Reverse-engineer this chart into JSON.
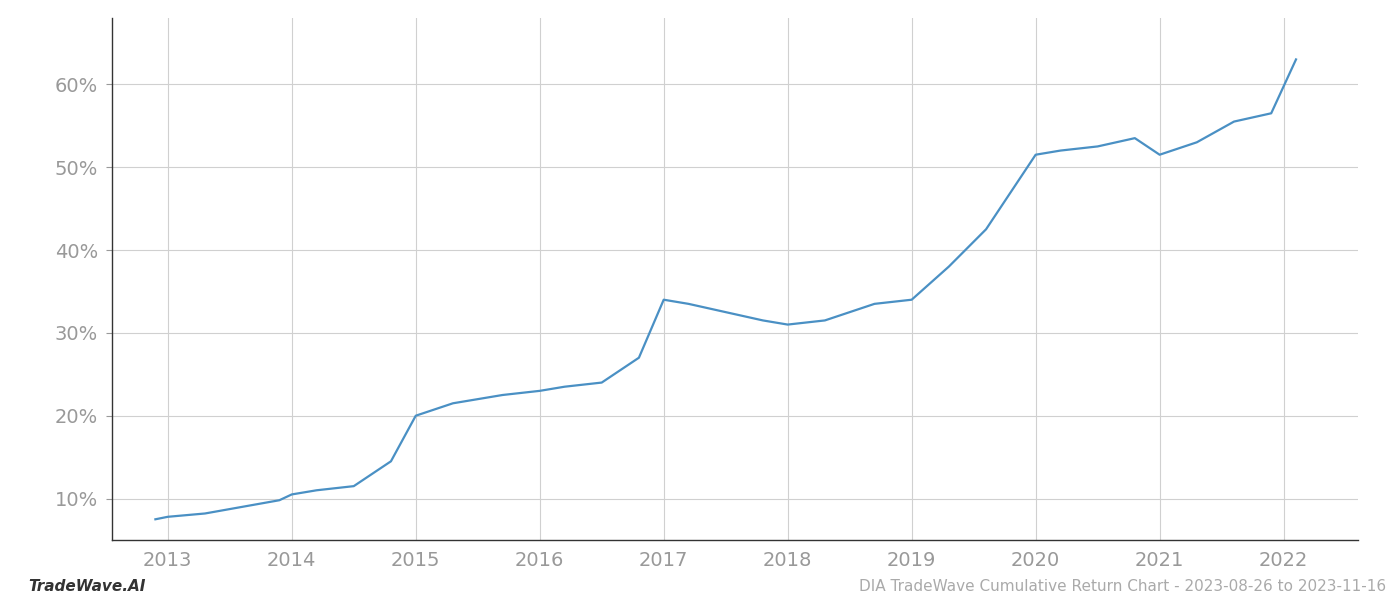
{
  "x_years": [
    2012.9,
    2013.0,
    2013.3,
    2013.6,
    2013.9,
    2014.0,
    2014.2,
    2014.5,
    2014.8,
    2015.0,
    2015.3,
    2015.7,
    2016.0,
    2016.2,
    2016.5,
    2016.8,
    2017.0,
    2017.2,
    2017.5,
    2017.8,
    2018.0,
    2018.3,
    2018.7,
    2019.0,
    2019.3,
    2019.6,
    2020.0,
    2020.2,
    2020.5,
    2020.8,
    2021.0,
    2021.3,
    2021.6,
    2021.9,
    2022.1
  ],
  "y_values": [
    7.5,
    7.8,
    8.2,
    9.0,
    9.8,
    10.5,
    11.0,
    11.5,
    14.5,
    20.0,
    21.5,
    22.5,
    23.0,
    23.5,
    24.0,
    27.0,
    34.0,
    33.5,
    32.5,
    31.5,
    31.0,
    31.5,
    33.5,
    34.0,
    38.0,
    42.5,
    51.5,
    52.0,
    52.5,
    53.5,
    51.5,
    53.0,
    55.5,
    56.5,
    63.0
  ],
  "line_color": "#4a90c4",
  "line_width": 1.6,
  "background_color": "#ffffff",
  "grid_color": "#d0d0d0",
  "yticks": [
    10,
    20,
    30,
    40,
    50,
    60
  ],
  "xticks": [
    2013,
    2014,
    2015,
    2016,
    2017,
    2018,
    2019,
    2020,
    2021,
    2022
  ],
  "ylim": [
    5,
    68
  ],
  "xlim": [
    2012.55,
    2022.6
  ],
  "tick_color": "#999999",
  "tick_fontsize": 14,
  "footer_left": "TradeWave.AI",
  "footer_right": "DIA TradeWave Cumulative Return Chart - 2023-08-26 to 2023-11-16",
  "footer_color": "#aaaaaa",
  "footer_fontsize": 11,
  "left_spine_color": "#333333",
  "bottom_spine_color": "#333333"
}
